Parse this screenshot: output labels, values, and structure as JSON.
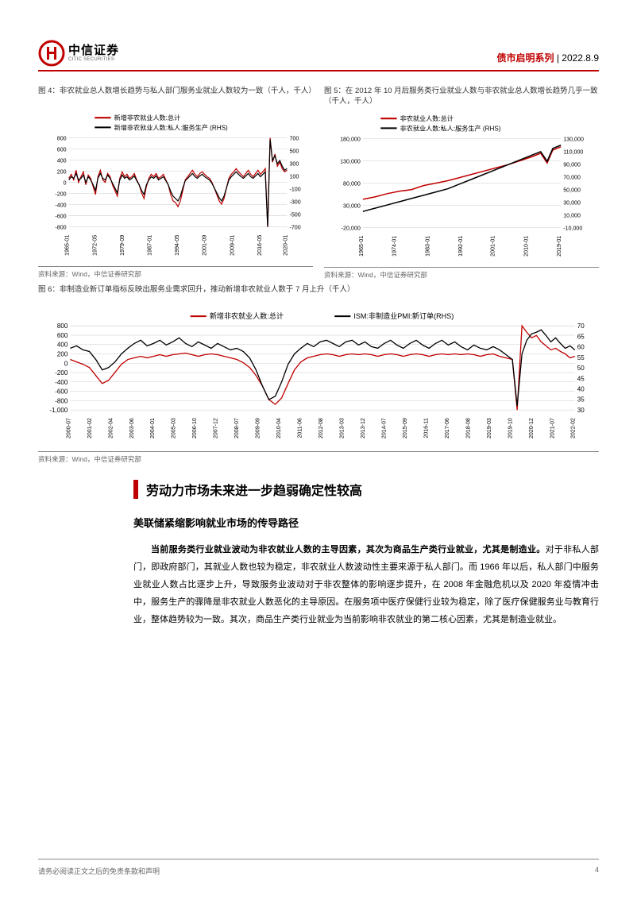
{
  "header": {
    "logo_cn": "中信证券",
    "logo_en": "CITIC SECURITIES",
    "series": "债市启明系列",
    "date": "2022.8.9",
    "logo_color": "#c00000"
  },
  "chart4": {
    "title": "图 4：非农就业总人数增长趋势与私人部门服务业就业人数较为一致（千人，千人）",
    "type": "line",
    "legend": [
      {
        "label": "新增非农就业人数:总计",
        "color": "#c00000"
      },
      {
        "label": "新增非农就业人数:私人:服务生产 (RHS)",
        "color": "#000000"
      }
    ],
    "x_labels": [
      "1965-01",
      "1972-05",
      "1979-09",
      "1987-01",
      "1994-05",
      "2001-09",
      "2009-01",
      "2016-05",
      "2020-01"
    ],
    "y_left": {
      "min": -800,
      "max": 800,
      "ticks": [
        -800,
        -600,
        -400,
        -200,
        0,
        200,
        400,
        600,
        800
      ]
    },
    "y_right": {
      "min": -700,
      "max": 700,
      "ticks": [
        -700,
        -500,
        -300,
        -100,
        100,
        300,
        500,
        700
      ]
    },
    "source": "资料来源：Wind，中信证券研究部",
    "background_color": "#ffffff",
    "grid_color": "#cccccc",
    "label_fontsize": 7
  },
  "chart5": {
    "title": "图 5：在 2012 年 10 月后服务类行业就业人数与非农就业总人数增长趋势几乎一致（千人，千人）",
    "type": "line",
    "legend": [
      {
        "label": "非农就业人数:总计",
        "color": "#c00000"
      },
      {
        "label": "非农就业人数:私人:服务生产 (RHS)",
        "color": "#000000"
      }
    ],
    "x_labels": [
      "1965-01",
      "1974-01",
      "1983-01",
      "1992-01",
      "2001-01",
      "2010-01",
      "2019-01"
    ],
    "y_left": {
      "min": -20000,
      "max": 180000,
      "ticks": [
        -20000,
        30000,
        80000,
        130000,
        180000
      ]
    },
    "y_right": {
      "min": -10000,
      "max": 130000,
      "ticks": [
        -10000,
        10000,
        30000,
        50000,
        70000,
        90000,
        110000,
        130000
      ]
    },
    "source": "资料来源：Wind，中信证券研究部",
    "background_color": "#ffffff",
    "grid_color": "#cccccc",
    "label_fontsize": 7
  },
  "chart6": {
    "title": "图 6：非制造业新订单指标反映出服务业需求回升，推动新增非农就业人数于 7 月上升（千人）",
    "type": "line",
    "legend": [
      {
        "label": "新增非农就业人数:总计",
        "color": "#c00000"
      },
      {
        "label": "ISM:非制造业PMI:新订单(RHS)",
        "color": "#000000"
      }
    ],
    "x_labels": [
      "2000-07",
      "2001-02",
      "2002-04",
      "2003-06",
      "2004-01",
      "2005-03",
      "2006-10",
      "2007-12",
      "2008-07",
      "2009-09",
      "2010-04",
      "2011-06",
      "2012-08",
      "2013-03",
      "2013-12",
      "2014-07",
      "2015-09",
      "2016-11",
      "2017-06",
      "2018-08",
      "2019-03",
      "2019-10",
      "2020-12",
      "2021-07",
      "2022-02"
    ],
    "y_left": {
      "min": -1000,
      "max": 800,
      "ticks": [
        -1000,
        -800,
        -600,
        -400,
        -200,
        0,
        200,
        400,
        600,
        800
      ]
    },
    "y_right": {
      "min": 30,
      "max": 70,
      "ticks": [
        30,
        35,
        40,
        45,
        50,
        55,
        60,
        65,
        70
      ]
    },
    "source": "资料来源：Wind，中信证券研究部",
    "background_color": "#ffffff",
    "grid_color": "#cccccc",
    "label_fontsize": 7
  },
  "section": {
    "title": "劳动力市场未来进一步趋弱确定性较高",
    "subtitle": "美联储紧缩影响就业市场的传导路径",
    "para_bold": "当前服务类行业就业波动为非农就业人数的主导因素，其次为商品生产类行业就业，尤其是制造业。",
    "para_rest": "对于非私人部门，即政府部门，其就业人数也较为稳定，非农就业人数波动性主要来源于私人部门。而 1966 年以后，私人部门中服务业就业人数占比逐步上升，导致服务业波动对于非农整体的影响逐步提升，在 2008 年金融危机以及 2020 年疫情冲击中，服务生产的骤降是非农就业人数恶化的主导原因。在服务项中医疗保健行业较为稳定，除了医疗保健服务业与教育行业，整体趋势较为一致。其次，商品生产类行业就业为当前影响非农就业的第二核心因素，尤其是制造业就业。"
  },
  "footer": {
    "disclaimer": "请务必阅读正文之后的免责条款和声明",
    "page": "4"
  },
  "colors": {
    "accent": "#c00000",
    "text": "#000000",
    "grid": "#cccccc"
  }
}
